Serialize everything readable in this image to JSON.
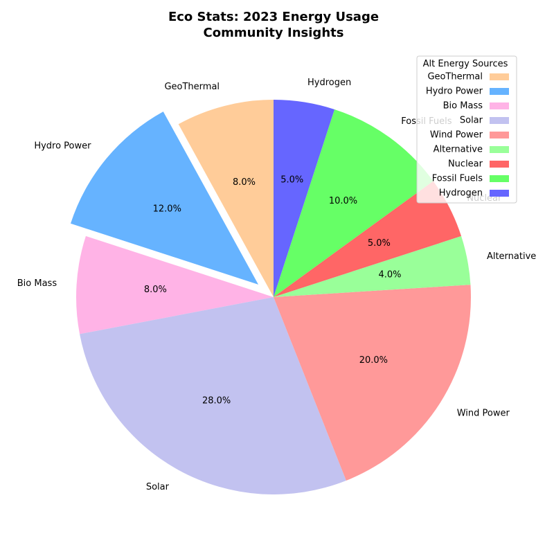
{
  "chart_data": {
    "type": "pie",
    "title": "Eco Stats: 2023 Energy Usage",
    "subtitle": "Community Insights",
    "categories": [
      "GeoThermal",
      "Hydro Power",
      "Bio Mass",
      "Solar",
      "Wind Power",
      "Alternative",
      "Nuclear",
      "Fossil Fuels",
      "Hydrogen"
    ],
    "values": [
      8,
      12,
      8,
      28,
      20,
      4,
      5,
      10,
      5
    ],
    "percent_labels": [
      "8.0%",
      "12.0%",
      "8.0%",
      "28.0%",
      "20.0%",
      "4.0%",
      "5.0%",
      "10.0%",
      "5.0%"
    ],
    "colors": [
      "#ffcc99",
      "#66b3ff",
      "#ffb3e6",
      "#c2c2f0",
      "#ff9999",
      "#99ff99",
      "#ff6666",
      "#66ff66",
      "#6666ff"
    ],
    "exploded": [
      "Hydro Power"
    ],
    "start_angle_deg": 90,
    "direction": "counterclockwise",
    "legend": {
      "title": "Alt Energy Sources",
      "placement": "top-right",
      "entries": [
        "GeoThermal",
        "Hydro Power",
        "Bio Mass",
        "Solar",
        "Wind Power",
        "Alternative",
        "Nuclear",
        "Fossil Fuels",
        "Hydrogen"
      ]
    }
  }
}
